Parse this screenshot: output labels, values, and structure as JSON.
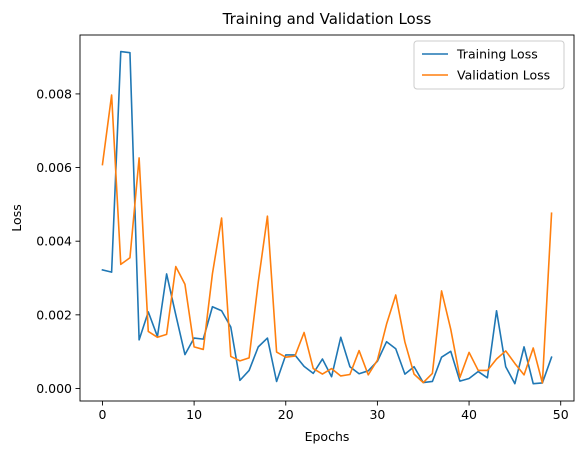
{
  "chart_data": {
    "type": "line",
    "title": "Training and Validation Loss",
    "xlabel": "Epochs",
    "ylabel": "Loss",
    "xlim": [
      -2.45,
      51.45
    ],
    "ylim": [
      -0.00034,
      0.0096
    ],
    "x_ticks": [
      0,
      10,
      20,
      30,
      40,
      50
    ],
    "x_tick_labels": [
      "0",
      "10",
      "20",
      "30",
      "40",
      "50"
    ],
    "y_ticks": [
      0.0,
      0.002,
      0.004,
      0.006,
      0.008
    ],
    "y_tick_labels": [
      "0.000",
      "0.002",
      "0.004",
      "0.006",
      "0.008"
    ],
    "grid": false,
    "legend_position": "top-right",
    "x": [
      0,
      1,
      2,
      3,
      4,
      5,
      6,
      7,
      8,
      9,
      10,
      11,
      12,
      13,
      14,
      15,
      16,
      17,
      18,
      19,
      20,
      21,
      22,
      23,
      24,
      25,
      26,
      27,
      28,
      29,
      30,
      31,
      32,
      33,
      34,
      35,
      36,
      37,
      38,
      39,
      40,
      41,
      42,
      43,
      44,
      45,
      46,
      47,
      48,
      49
    ],
    "series": [
      {
        "name": "Training Loss",
        "color": "#1f77b4",
        "values": [
          0.00322,
          0.00316,
          0.00915,
          0.00912,
          0.00132,
          0.00208,
          0.00141,
          0.00311,
          0.002,
          0.00092,
          0.00137,
          0.00134,
          0.00222,
          0.00211,
          0.00167,
          0.00022,
          0.00049,
          0.00113,
          0.00137,
          0.00019,
          0.00091,
          0.00091,
          0.0006,
          0.00041,
          0.0008,
          0.00032,
          0.00139,
          0.00059,
          0.0004,
          0.00048,
          0.00074,
          0.00127,
          0.00108,
          0.00039,
          0.00059,
          0.00016,
          0.00019,
          0.00085,
          0.00101,
          0.0002,
          0.00027,
          0.00046,
          0.00029,
          0.00211,
          0.00059,
          0.00013,
          0.00113,
          0.00013,
          0.00015,
          0.00085
        ]
      },
      {
        "name": "Validation Loss",
        "color": "#ff7f0e",
        "values": [
          0.00608,
          0.00797,
          0.00337,
          0.00355,
          0.00626,
          0.00155,
          0.00139,
          0.00147,
          0.00331,
          0.00283,
          0.00113,
          0.00106,
          0.00312,
          0.00463,
          0.00087,
          0.00075,
          0.00083,
          0.00289,
          0.00468,
          0.00099,
          0.00085,
          0.00088,
          0.00152,
          0.00054,
          0.00039,
          0.00054,
          0.00034,
          0.00038,
          0.00103,
          0.00037,
          0.00077,
          0.00175,
          0.00254,
          0.00126,
          0.00039,
          0.00016,
          0.00041,
          0.00265,
          0.00161,
          0.0003,
          0.00098,
          0.00049,
          0.00049,
          0.0008,
          0.00102,
          0.00068,
          0.00037,
          0.0011,
          0.00015,
          0.00476
        ]
      }
    ]
  }
}
